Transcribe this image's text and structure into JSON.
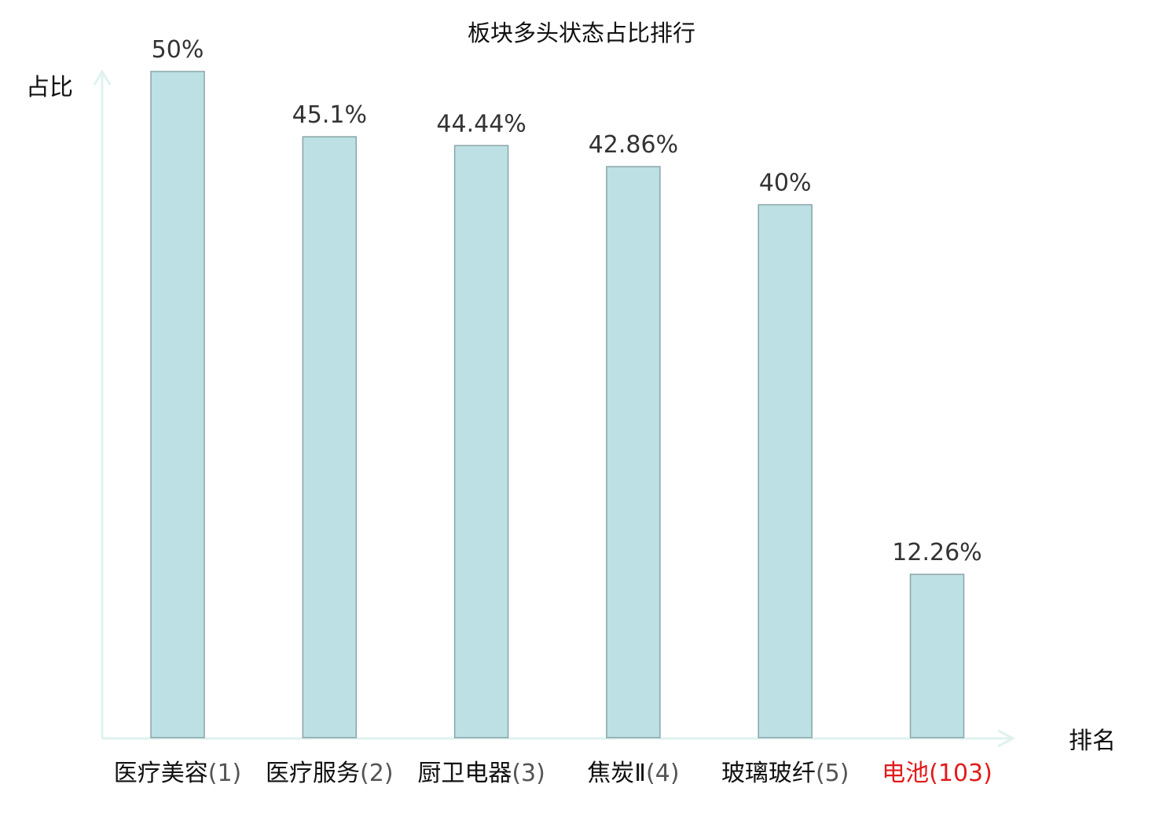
{
  "chart_data": {
    "type": "bar",
    "title": "板块多头状态占比排行",
    "xlabel": "排名",
    "ylabel": "占比",
    "categories": [
      {
        "name": "医疗美容",
        "rank": "(1)"
      },
      {
        "name": "医疗服务",
        "rank": "(2)"
      },
      {
        "name": "厨卫电器",
        "rank": "(3)"
      },
      {
        "name": "焦炭Ⅱ",
        "rank": "(4)"
      },
      {
        "name": "玻璃玻纤",
        "rank": "(5)"
      },
      {
        "name": "电池",
        "rank": "(103)",
        "highlight": true
      }
    ],
    "values": [
      50,
      45.1,
      44.44,
      42.86,
      40,
      12.26
    ],
    "value_labels": [
      "50%",
      "45.1%",
      "44.44%",
      "42.86%",
      "40%",
      "12.26%"
    ],
    "ylim": [
      0,
      50
    ],
    "grid": false,
    "legend": "none",
    "colors": {
      "bar_fill": "#bce0e3",
      "bar_stroke": "#8aa5a8",
      "axis": "#dff2ef",
      "highlight": "#e21b1b"
    }
  }
}
